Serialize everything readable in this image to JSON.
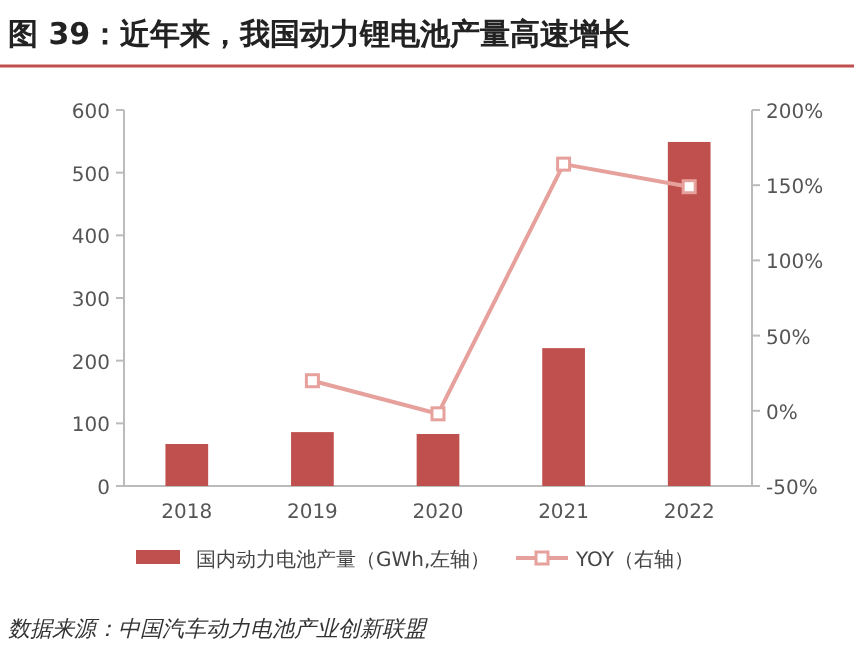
{
  "chart_data": {
    "type": "bar",
    "title": "图 39：近年来，我国动力锂电池产量高速增长",
    "categories": [
      "2018",
      "2019",
      "2020",
      "2021",
      "2022"
    ],
    "series": [
      {
        "name": "国内动力电池产量（GWh,左轴）",
        "color": "#c0504d",
        "values": [
          67,
          86,
          83,
          220,
          549
        ]
      },
      {
        "name": "YOY（右轴）",
        "type": "line",
        "axis": "y2",
        "color": "#e6a19c",
        "marker": "square",
        "values": [
          null,
          20,
          -2,
          164,
          149
        ]
      }
    ],
    "ylim": [
      0,
      600
    ],
    "yticks": [
      0,
      100,
      200,
      300,
      400,
      500,
      600
    ],
    "y2lim": [
      -50,
      200
    ],
    "y2ticks": [
      {
        "value": -50,
        "label": "-50%"
      },
      {
        "value": 0,
        "label": "0%"
      },
      {
        "value": 50,
        "label": "50%"
      },
      {
        "value": 100,
        "label": "100%"
      },
      {
        "value": 150,
        "label": "150%"
      },
      {
        "value": 200,
        "label": "200%"
      }
    ],
    "legend": "bottom",
    "annotations": [
      "数据来源：中国汽车动力电池产业创新联盟"
    ]
  }
}
